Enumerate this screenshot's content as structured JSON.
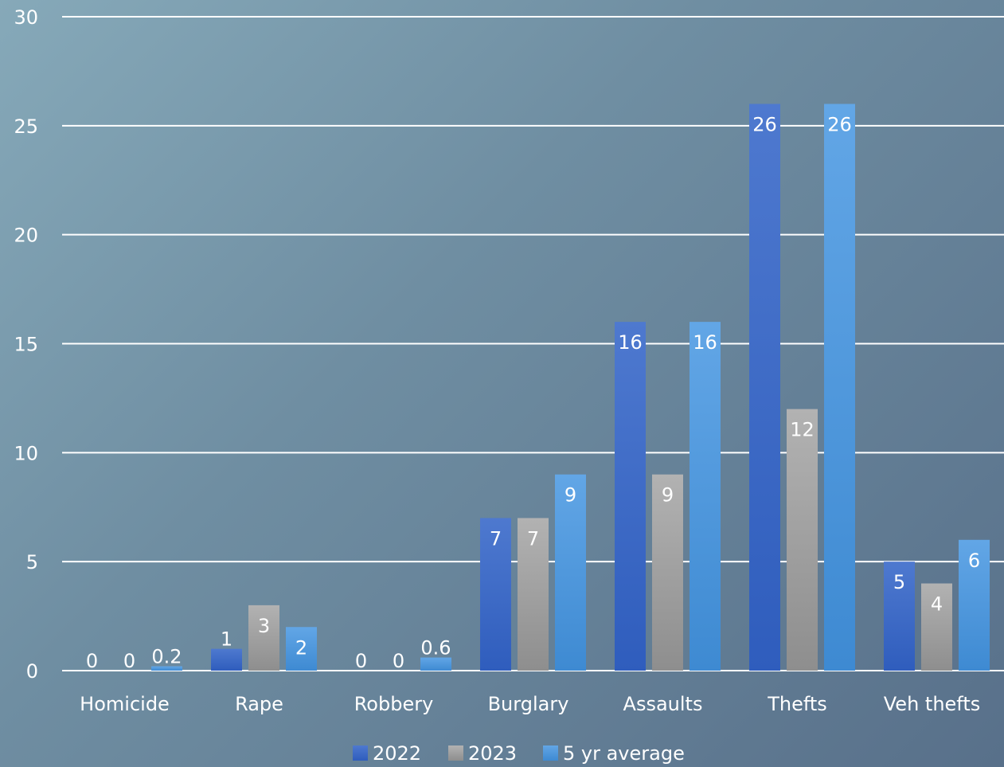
{
  "chart_data": {
    "type": "bar",
    "categories": [
      "Homicide",
      "Rape",
      "Robbery",
      "Burglary",
      "Assaults",
      "Thefts",
      "Veh thefts"
    ],
    "series": [
      {
        "name": "2022",
        "values": [
          0,
          1,
          0,
          7,
          16,
          26,
          5
        ],
        "labels": [
          "0",
          "1",
          "0",
          "7",
          "16",
          "26",
          "5"
        ]
      },
      {
        "name": "2023",
        "values": [
          0,
          3,
          0,
          7,
          9,
          12,
          4
        ],
        "labels": [
          "0",
          "3",
          "0",
          "7",
          "9",
          "12",
          "4"
        ]
      },
      {
        "name": "5 yr average",
        "values": [
          0.2,
          2,
          0.6,
          9,
          16,
          26,
          6
        ],
        "labels": [
          "0.2",
          "2",
          "0.6",
          "9",
          "16",
          "26",
          "6"
        ]
      }
    ],
    "ylim": [
      0,
      30
    ],
    "yticks": [
      "0",
      "5",
      "10",
      "15",
      "20",
      "25",
      "30"
    ],
    "grid": true,
    "legend": "bottom",
    "colors": {
      "2022": "#3f6cc6",
      "2023": "#a5a5a5",
      "5 yr average": "#4a96d8"
    }
  }
}
